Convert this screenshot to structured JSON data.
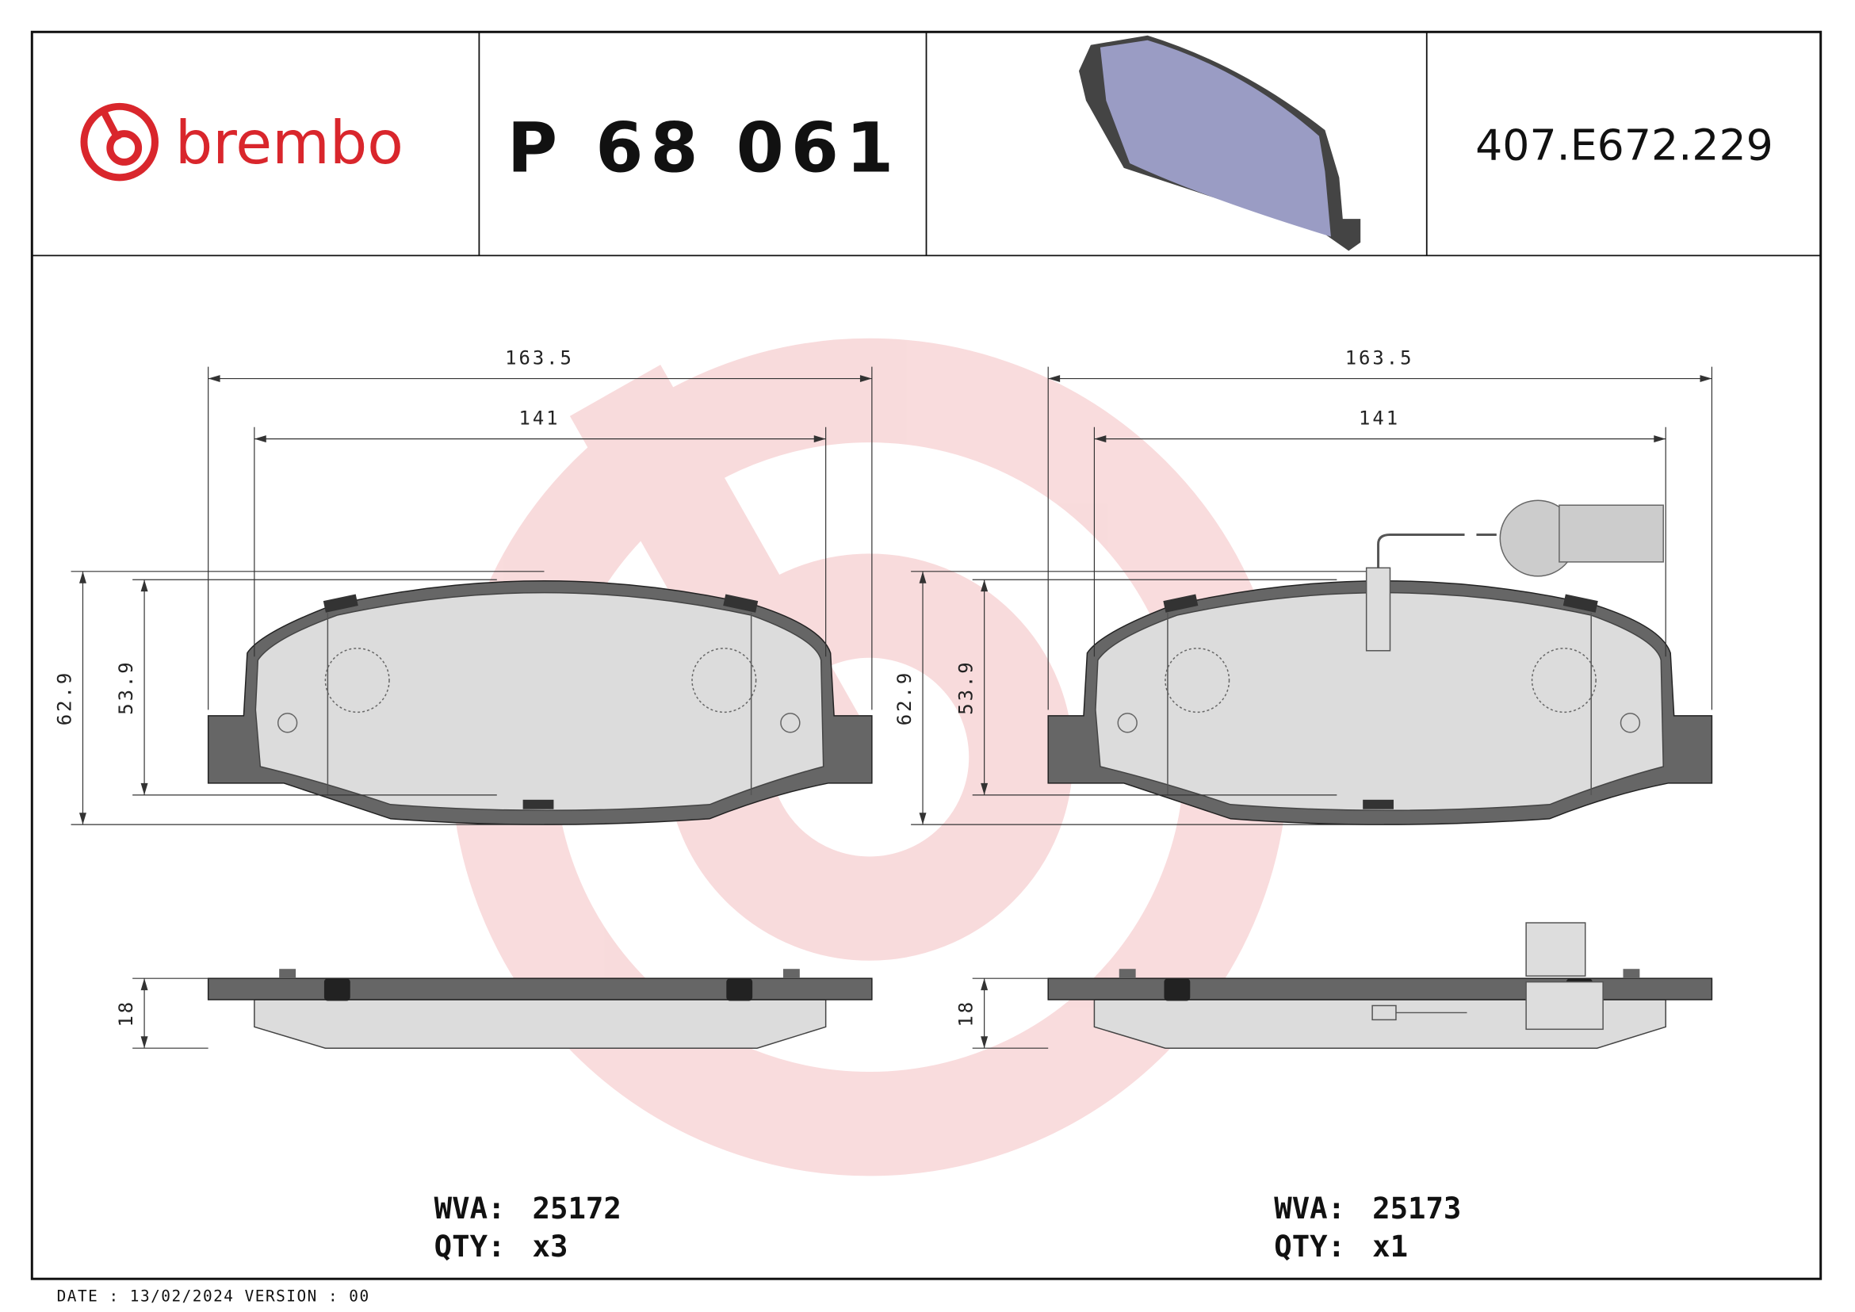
{
  "header": {
    "brand": "brembo",
    "part_number": "P 68 061",
    "reference": "407.E672.229"
  },
  "drawings": [
    {
      "dimensions": {
        "overall_width": "163.5",
        "width": "141",
        "overall_height": "62.9",
        "height": "53.9",
        "thickness": "18"
      },
      "wva_label": "WVA:",
      "wva": "25172",
      "qty_label": "QTY:",
      "qty": "x3"
    },
    {
      "dimensions": {
        "overall_width": "163.5",
        "width": "141",
        "overall_height": "62.9",
        "height": "53.9",
        "thickness": "18"
      },
      "wva_label": "WVA:",
      "wva": "25173",
      "qty_label": "QTY:",
      "qty": "x1"
    }
  ],
  "footer": {
    "date_version": "DATE : 13/02/2024 VERSION : 00"
  }
}
